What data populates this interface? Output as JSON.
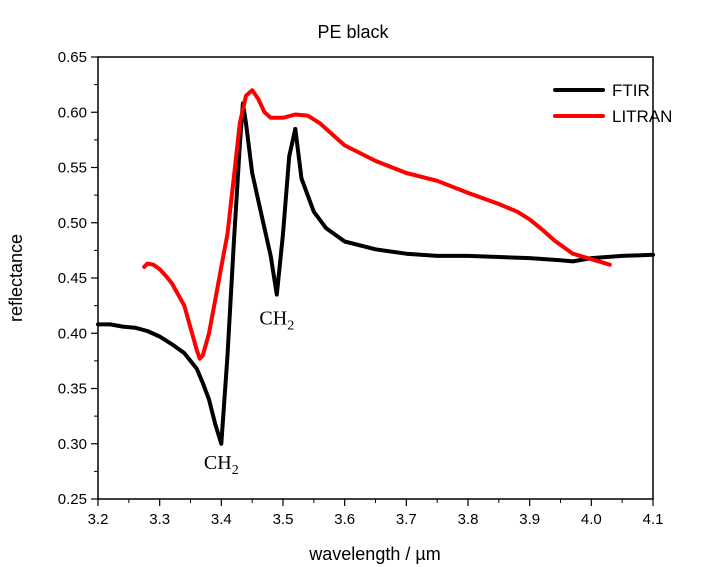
{
  "chart_data": {
    "type": "line",
    "title": "PE black",
    "xlabel": "wavelength / µm",
    "ylabel": "reflectance",
    "xlim": [
      3.2,
      4.1
    ],
    "ylim": [
      0.25,
      0.65
    ],
    "x_ticks": [
      "3.2",
      "3.3",
      "3.4",
      "3.5",
      "3.6",
      "3.7",
      "3.8",
      "3.9",
      "4.0",
      "4.1"
    ],
    "y_ticks": [
      "0.25",
      "0.30",
      "0.35",
      "0.40",
      "0.45",
      "0.50",
      "0.55",
      "0.60",
      "0.65"
    ],
    "grid": false,
    "legend_position": "top-right",
    "annotations": [
      {
        "text": "CH",
        "sub": "2",
        "x": 3.4,
        "y": 0.277
      },
      {
        "text": "CH",
        "sub": "2",
        "x": 3.49,
        "y": 0.408
      }
    ],
    "series": [
      {
        "name": "FTIR",
        "color": "#000000",
        "x": [
          3.2,
          3.22,
          3.24,
          3.26,
          3.28,
          3.3,
          3.32,
          3.34,
          3.36,
          3.37,
          3.38,
          3.39,
          3.4,
          3.41,
          3.42,
          3.43,
          3.435,
          3.44,
          3.45,
          3.46,
          3.47,
          3.48,
          3.49,
          3.5,
          3.51,
          3.52,
          3.53,
          3.55,
          3.57,
          3.6,
          3.65,
          3.7,
          3.75,
          3.8,
          3.85,
          3.9,
          3.95,
          3.97,
          4.0,
          4.05,
          4.1
        ],
        "y": [
          0.408,
          0.408,
          0.406,
          0.405,
          0.402,
          0.397,
          0.39,
          0.382,
          0.368,
          0.355,
          0.34,
          0.318,
          0.3,
          0.38,
          0.48,
          0.57,
          0.608,
          0.59,
          0.545,
          0.52,
          0.495,
          0.47,
          0.435,
          0.49,
          0.56,
          0.585,
          0.54,
          0.51,
          0.495,
          0.483,
          0.476,
          0.472,
          0.47,
          0.47,
          0.469,
          0.468,
          0.466,
          0.465,
          0.468,
          0.47,
          0.471
        ]
      },
      {
        "name": "LITRAN",
        "color": "#ff0000",
        "x": [
          3.275,
          3.28,
          3.29,
          3.3,
          3.31,
          3.32,
          3.33,
          3.34,
          3.35,
          3.36,
          3.365,
          3.37,
          3.38,
          3.39,
          3.4,
          3.41,
          3.42,
          3.43,
          3.44,
          3.45,
          3.46,
          3.47,
          3.48,
          3.5,
          3.52,
          3.54,
          3.56,
          3.58,
          3.6,
          3.65,
          3.7,
          3.75,
          3.8,
          3.85,
          3.88,
          3.9,
          3.92,
          3.94,
          3.97,
          4.0,
          4.03
        ],
        "y": [
          0.46,
          0.463,
          0.462,
          0.458,
          0.452,
          0.445,
          0.435,
          0.425,
          0.405,
          0.385,
          0.377,
          0.38,
          0.4,
          0.43,
          0.46,
          0.49,
          0.54,
          0.59,
          0.615,
          0.62,
          0.612,
          0.6,
          0.595,
          0.595,
          0.598,
          0.597,
          0.59,
          0.58,
          0.57,
          0.556,
          0.545,
          0.538,
          0.527,
          0.517,
          0.51,
          0.503,
          0.494,
          0.484,
          0.472,
          0.467,
          0.462
        ]
      }
    ]
  }
}
